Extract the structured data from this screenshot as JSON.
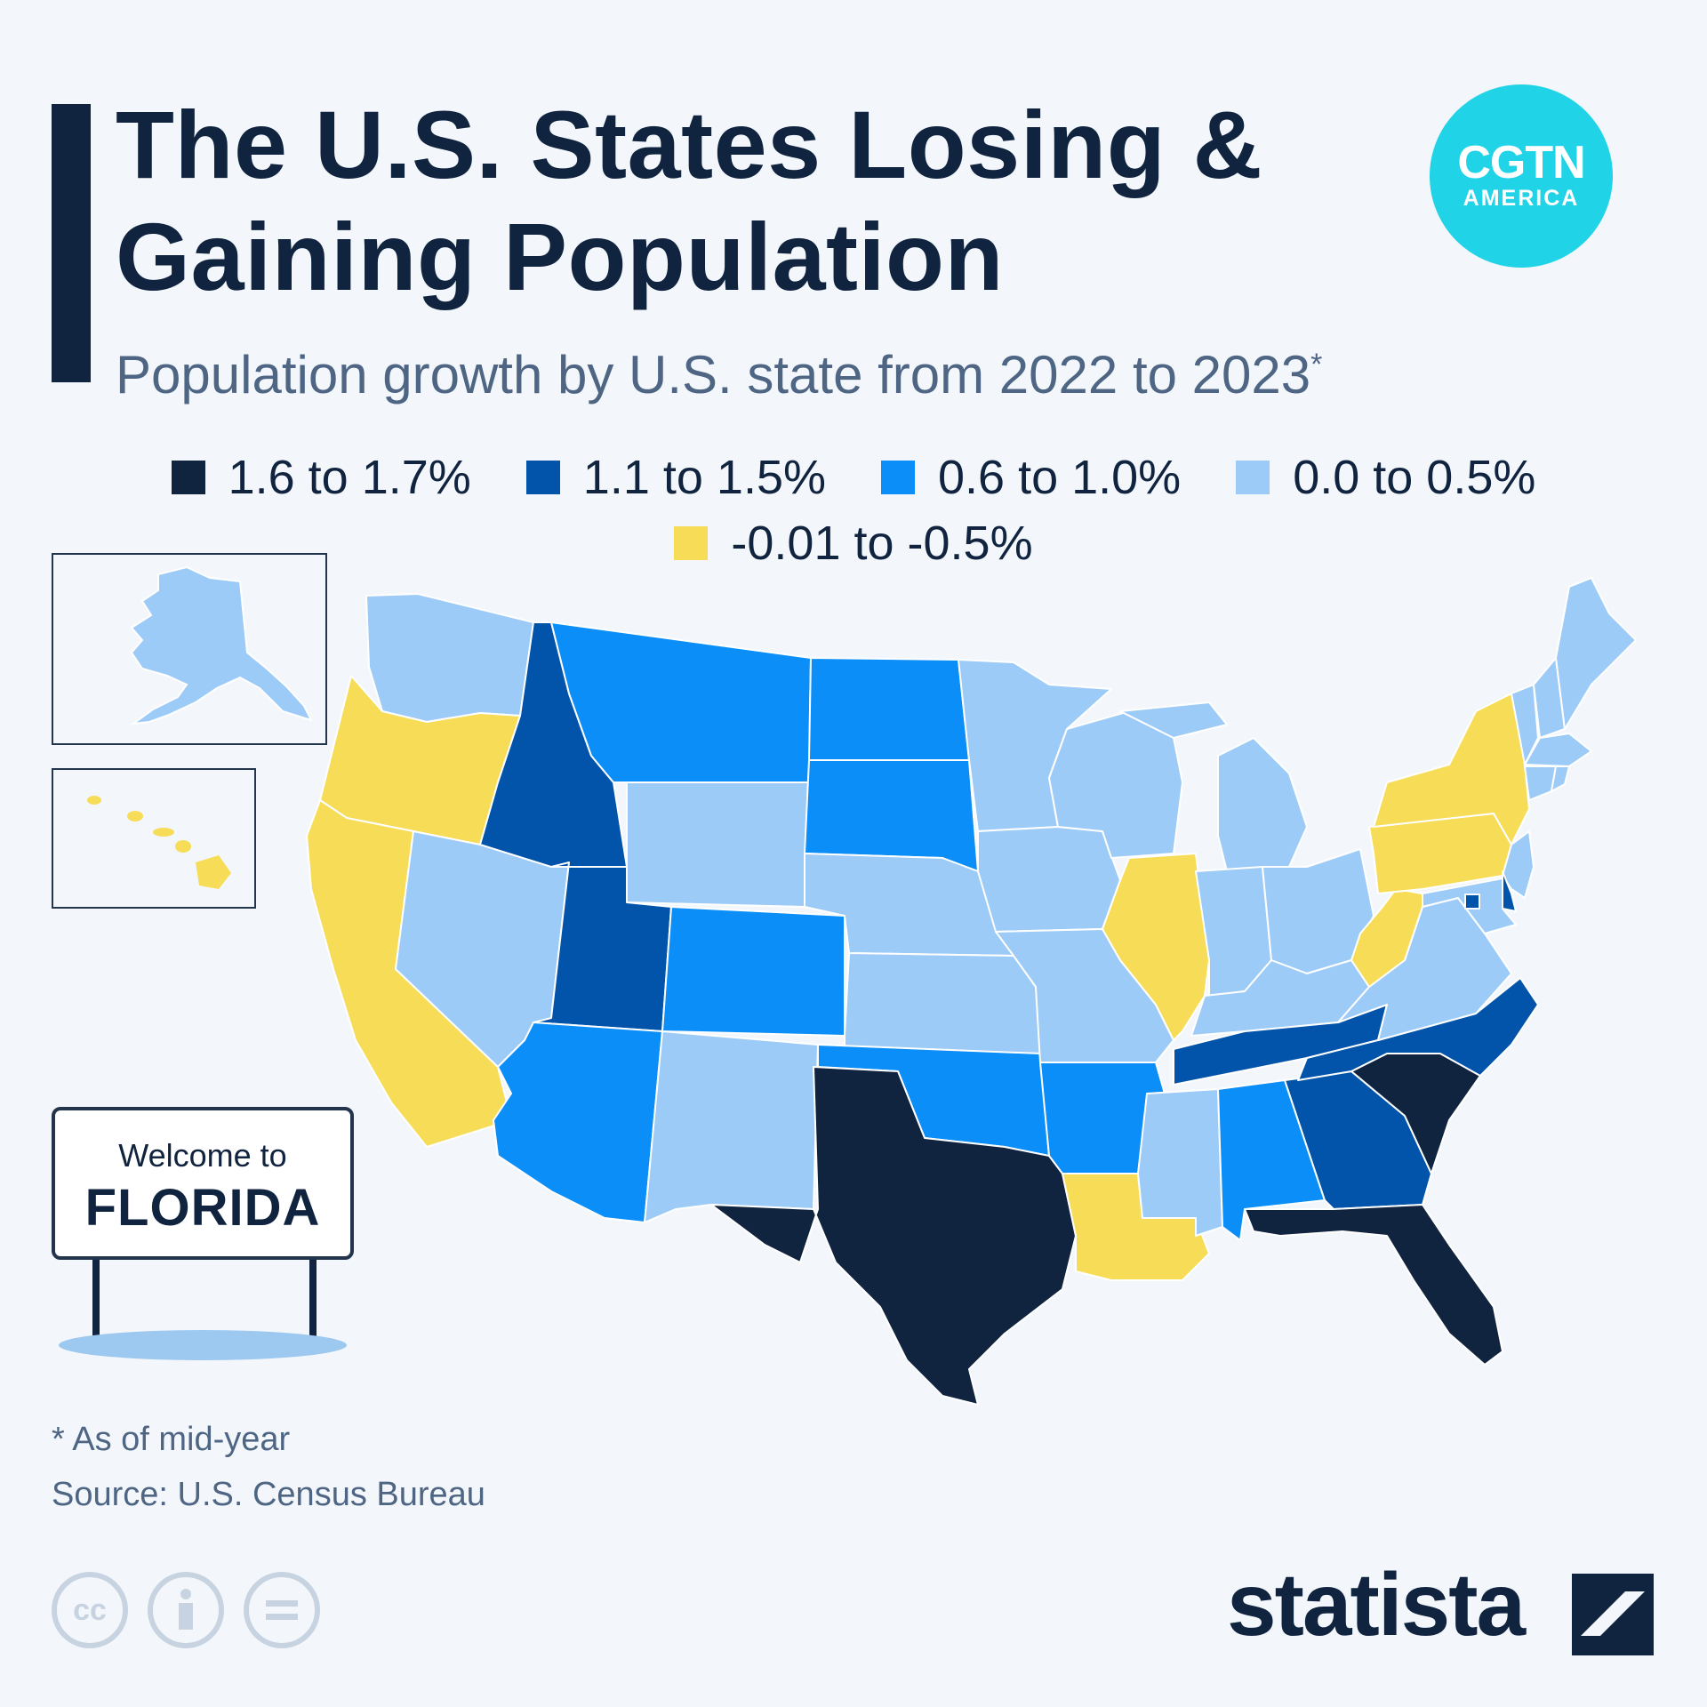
{
  "title": "The U.S. States Losing & Gaining Population",
  "subtitle": "Population growth by U.S. state from 2022 to 2023",
  "subtitle_mark": "*",
  "logo": {
    "top": "CGTN",
    "bottom": "AMERICA"
  },
  "legend": [
    {
      "label": "1.6 to 1.7%",
      "color": "#10233f"
    },
    {
      "label": "1.1 to 1.5%",
      "color": "#0254aa"
    },
    {
      "label": "0.6 to 1.0%",
      "color": "#0c8ef8"
    },
    {
      "label": "0.0 to 0.5%",
      "color": "#9dcbf7"
    },
    {
      "label": "-0.01 to -0.5%",
      "color": "#f7dc58"
    }
  ],
  "sign": {
    "line1": "Welcome to",
    "line2": "FLORIDA"
  },
  "footnote": "* As of mid-year",
  "source": "Source: U.S. Census Bureau",
  "cc_icons": [
    "cc-icon",
    "attribution-icon",
    "noderivs-icon"
  ],
  "brand": "statista",
  "chart_data": {
    "type": "choropleth",
    "categories": [
      "1.6 to 1.7%",
      "1.1 to 1.5%",
      "0.6 to 1.0%",
      "0.0 to 0.5%",
      "-0.01 to -0.5%"
    ],
    "states": {
      "WA": "0.0 to 0.5%",
      "OR": "-0.01 to -0.5%",
      "CA": "-0.01 to -0.5%",
      "NV": "0.0 to 0.5%",
      "ID": "1.1 to 1.5%",
      "MT": "0.6 to 1.0%",
      "WY": "0.0 to 0.5%",
      "UT": "1.1 to 1.5%",
      "CO": "0.6 to 1.0%",
      "AZ": "0.6 to 1.0%",
      "NM": "0.0 to 0.5%",
      "ND": "0.6 to 1.0%",
      "SD": "0.6 to 1.0%",
      "NE": "0.0 to 0.5%",
      "KS": "0.0 to 0.5%",
      "OK": "0.6 to 1.0%",
      "TX": "1.6 to 1.7%",
      "MN": "0.0 to 0.5%",
      "IA": "0.0 to 0.5%",
      "MO": "0.0 to 0.5%",
      "AR": "0.6 to 1.0%",
      "LA": "-0.01 to -0.5%",
      "WI": "0.0 to 0.5%",
      "IL": "-0.01 to -0.5%",
      "MI": "0.0 to 0.5%",
      "IN": "0.0 to 0.5%",
      "OH": "0.0 to 0.5%",
      "KY": "0.0 to 0.5%",
      "TN": "1.1 to 1.5%",
      "MS": "0.0 to 0.5%",
      "AL": "0.6 to 1.0%",
      "GA": "1.1 to 1.5%",
      "FL": "1.6 to 1.7%",
      "SC": "1.6 to 1.7%",
      "NC": "1.1 to 1.5%",
      "VA": "0.0 to 0.5%",
      "WV": "-0.01 to -0.5%",
      "PA": "-0.01 to -0.5%",
      "NY": "-0.01 to -0.5%",
      "NJ": "0.0 to 0.5%",
      "DE": "1.1 to 1.5%",
      "MD": "0.0 to 0.5%",
      "DC": "1.1 to 1.5%",
      "VT": "0.0 to 0.5%",
      "NH": "0.0 to 0.5%",
      "ME": "0.0 to 0.5%",
      "MA": "0.0 to 0.5%",
      "CT": "0.0 to 0.5%",
      "RI": "0.0 to 0.5%",
      "AK": "0.0 to 0.5%",
      "HI": "-0.01 to -0.5%"
    }
  }
}
